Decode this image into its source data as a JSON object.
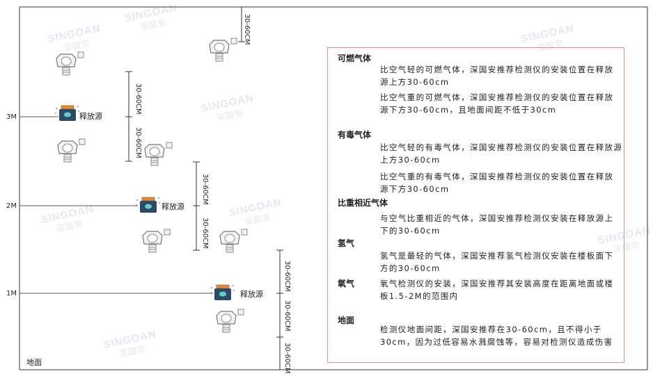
{
  "watermark": {
    "brand": "SINGOAN",
    "cn": "深国安"
  },
  "levels": [
    "3M",
    "2M",
    "1M"
  ],
  "ground_label": "地面",
  "source_label": "释放源",
  "dimension_label": "30-60CM",
  "colors": {
    "frame": "#333333",
    "box_border": "#f08a8a",
    "source_body": "#2f4a66",
    "source_cap": "#e08a3c"
  },
  "notes": [
    {
      "heading": "可燃气体",
      "paragraphs": [
        "比空气轻的可燃气体，深国安推荐检测仪的安装位置在释放源上方30-60cm",
        "比空气重的可燃气体，深国安推荐检测仪的安装位置在释放源下方30-60cm，且地面间距不低于30cm"
      ]
    },
    {
      "heading": "有毒气体",
      "paragraphs": [
        "比空气轻的有毒气体，深国安推荐检测仪的安装位置在释放源上方30-60cm",
        "比空气重的有毒气体，深国安推荐检测仪的安装位置在释放源下方30-60cm"
      ]
    },
    {
      "heading": "比重相近气体",
      "paragraphs": [
        "与空气比重相近的气体，深国安推荐检测仪安装在释放源上下的30-60cm"
      ]
    },
    {
      "heading": "氢气",
      "paragraphs": [
        "氢气是最轻的气体，深国安推荐氢气检测仪安装在楼板面下方的30-60cm"
      ]
    },
    {
      "heading": "氧气",
      "paragraphs": [
        "氧气检测仪的安装，深国安推荐其安装高度在距离地面或楼板1.5-2M的范围内"
      ]
    },
    {
      "heading": "地面",
      "paragraphs": [
        "检测仪地面间距，深国安推荐在30-60cm，且不得小于30cm，因为过低容易水溅腐蚀等，容易对检测仪造成伤害"
      ]
    }
  ]
}
